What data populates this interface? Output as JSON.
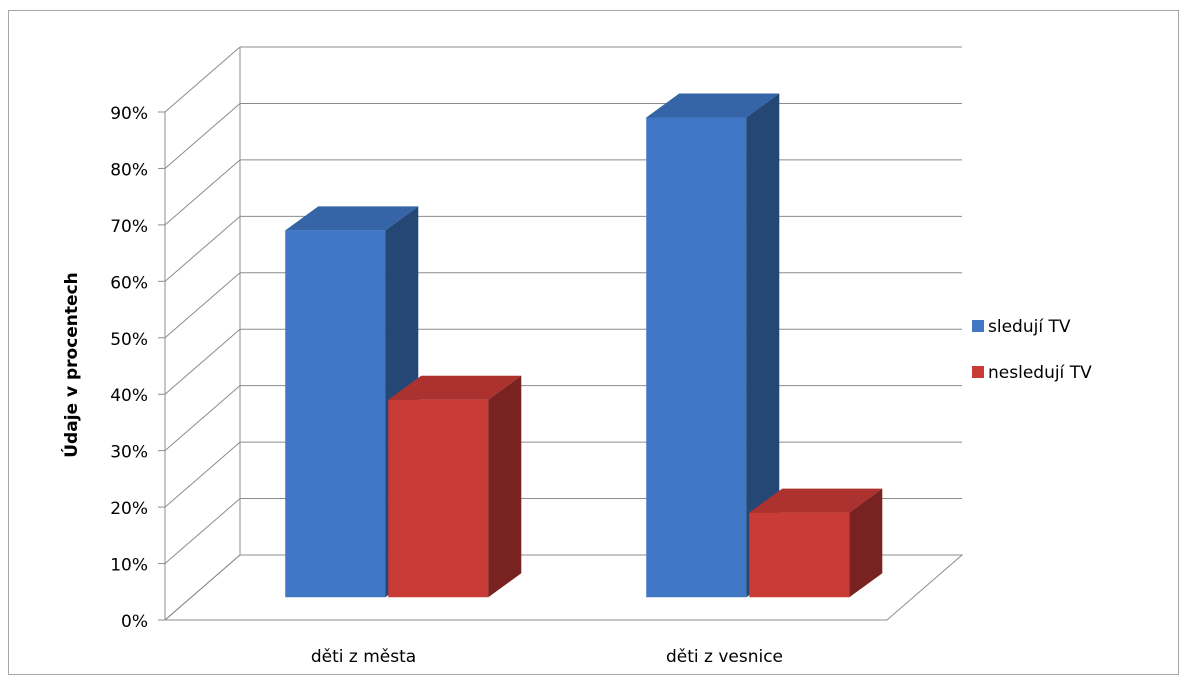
{
  "chart_data": {
    "type": "bar3d",
    "y_label": "Údaje v procentech",
    "categories": [
      "děti z města",
      "děti z vesnice"
    ],
    "series": [
      {
        "name": "sledují TV",
        "color": "#3f77c4",
        "values": [
          65,
          85
        ]
      },
      {
        "name": "nesledují TV",
        "color": "#c93b37",
        "values": [
          35,
          15
        ]
      }
    ],
    "ylim": [
      0,
      90
    ],
    "yticks": [
      {
        "value": 0,
        "label": "0%"
      },
      {
        "value": 10,
        "label": "10%"
      },
      {
        "value": 20,
        "label": "20%"
      },
      {
        "value": 30,
        "label": "30%"
      },
      {
        "value": 40,
        "label": "40%"
      },
      {
        "value": 50,
        "label": "50%"
      },
      {
        "value": 60,
        "label": "60%"
      },
      {
        "value": 70,
        "label": "70%"
      },
      {
        "value": 80,
        "label": "80%"
      },
      {
        "value": 90,
        "label": "90%"
      }
    ],
    "grid": true,
    "legend": "right"
  }
}
